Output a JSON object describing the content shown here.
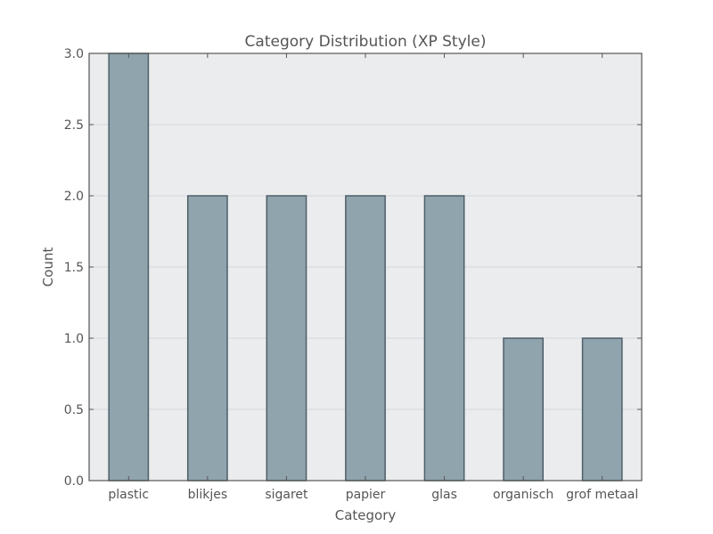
{
  "chart_data": {
    "type": "bar",
    "title": "Category Distribution (XP Style)",
    "xlabel": "Category",
    "ylabel": "Count",
    "categories": [
      "plastic",
      "blikjes",
      "sigaret",
      "papier",
      "glas",
      "organisch",
      "grof metaal"
    ],
    "values": [
      3,
      2,
      2,
      2,
      2,
      1,
      1
    ],
    "ylim": [
      0,
      3.0
    ],
    "yticks": [
      "0.0",
      "0.5",
      "1.0",
      "1.5",
      "2.0",
      "2.5",
      "3.0"
    ],
    "grid": true,
    "legend": "none",
    "colors": {
      "plot_background": "#eaecee",
      "bar_fill": "#8fa4ad",
      "bar_edge": "#4f5f68",
      "text": "#555555"
    }
  }
}
